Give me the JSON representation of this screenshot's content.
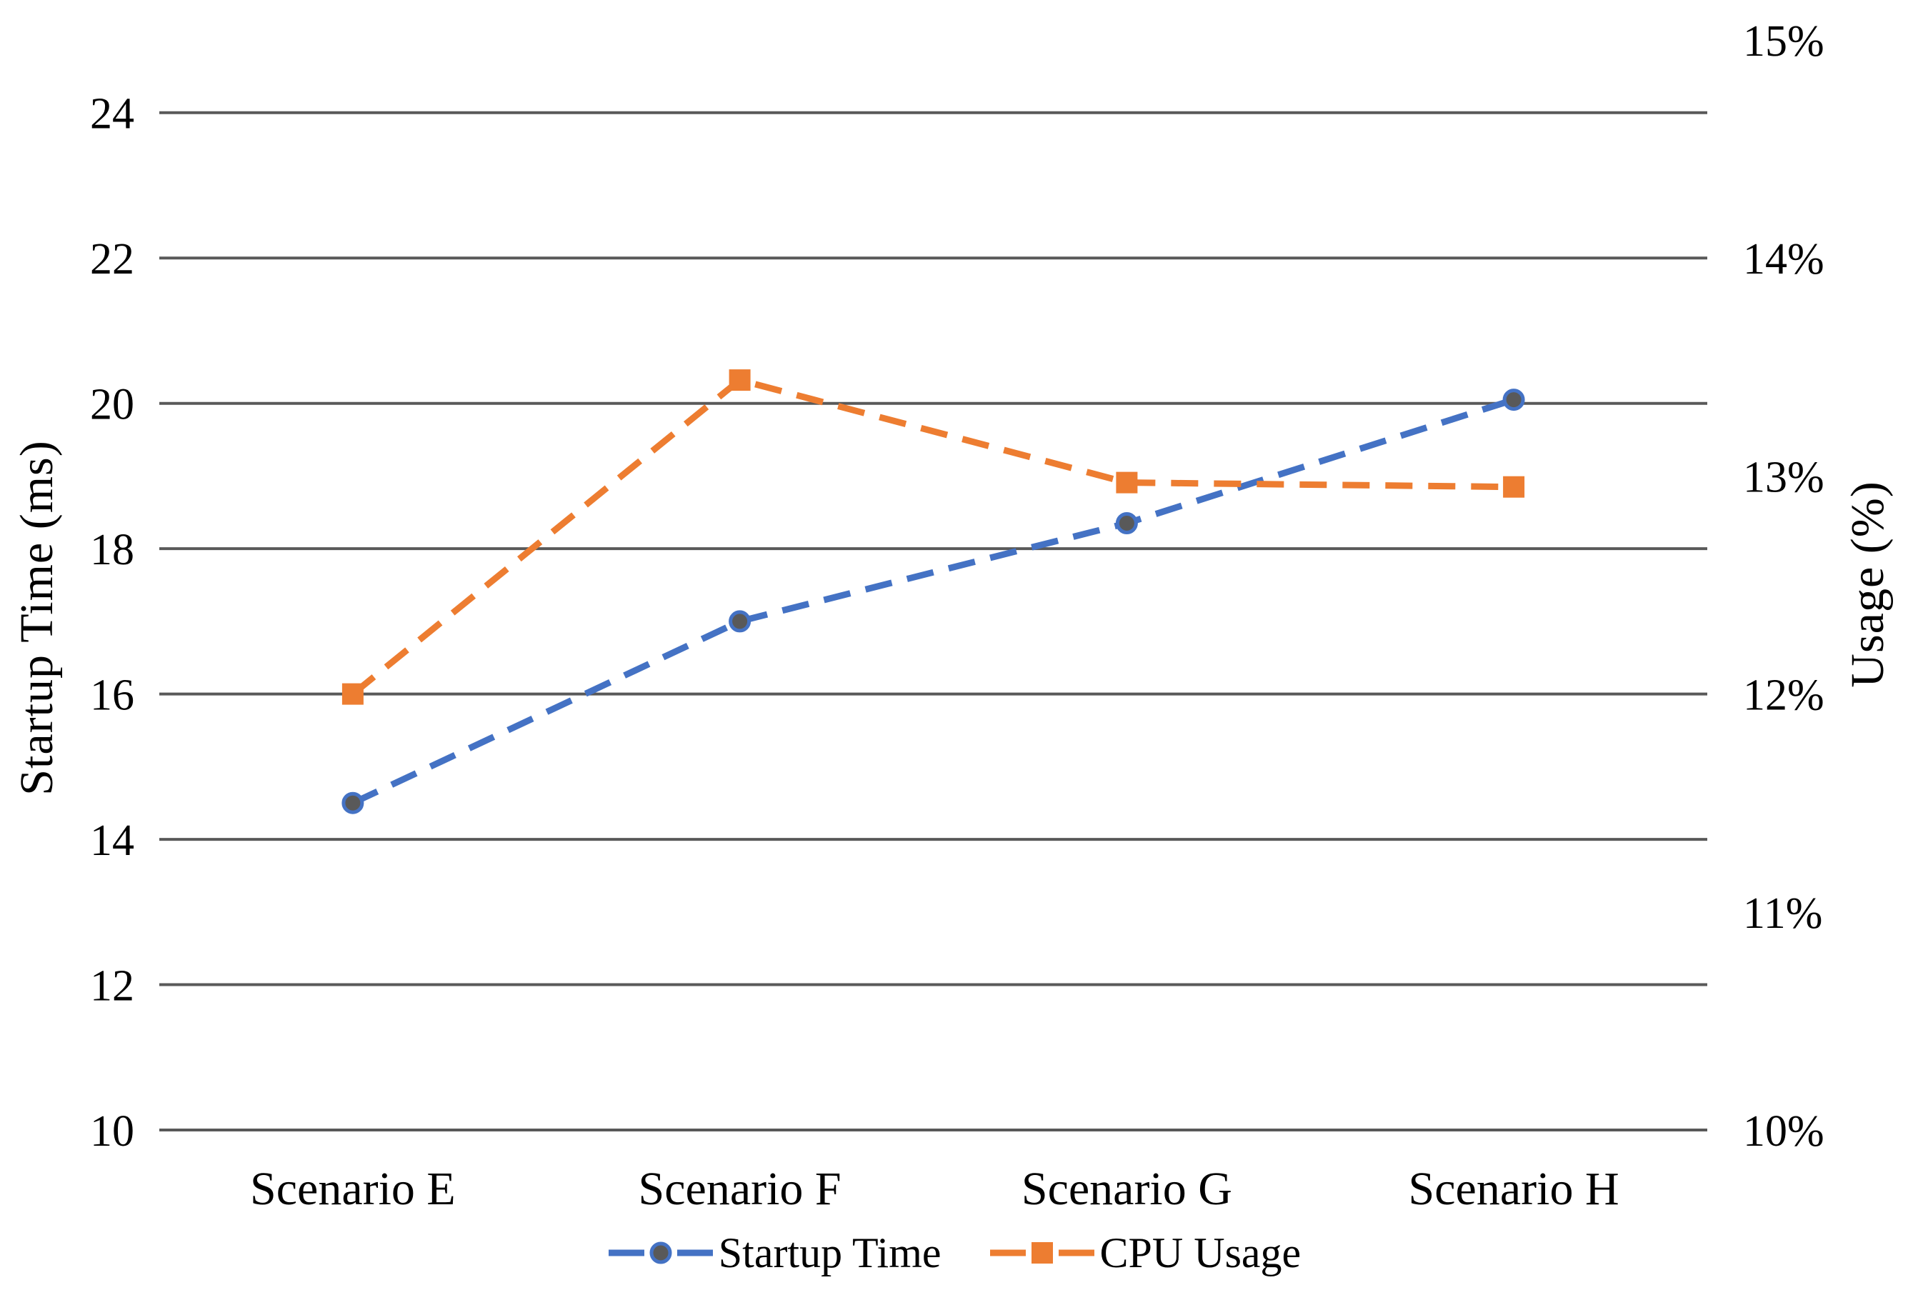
{
  "chart_data": {
    "type": "line",
    "title": "",
    "categories": [
      "Scenario E",
      "Scenario F",
      "Scenario G",
      "Scenario H"
    ],
    "series": [
      {
        "name": "Startup Time",
        "axis": "left",
        "unit": "ms",
        "values": [
          14.5,
          17.0,
          18.35,
          20.05
        ],
        "color": "#4472C4",
        "line_style": "dashed",
        "marker": "circle",
        "marker_fill": "#595959"
      },
      {
        "name": "CPU Usage",
        "axis": "right",
        "unit": "%",
        "values": [
          12.0,
          13.44,
          12.97,
          12.95
        ],
        "color": "#ED7D31",
        "line_style": "dashed",
        "marker": "square",
        "marker_fill": "#ED7D31"
      }
    ],
    "left_axis": {
      "title": "Startup Time (ms)",
      "min": 10,
      "max": 25,
      "tick_values": [
        24,
        22,
        20,
        18,
        16,
        14,
        12,
        10
      ],
      "tick_labels": [
        "24",
        "22",
        "20",
        "18",
        "16",
        "14",
        "12",
        "10"
      ]
    },
    "right_axis": {
      "title": "Usage (%)",
      "min": 10,
      "max": 15,
      "tick_values": [
        15,
        14,
        13,
        12,
        11,
        10
      ],
      "tick_labels": [
        "15%",
        "14%",
        "13%",
        "12%",
        "11%",
        "10%"
      ]
    },
    "grid": {
      "horizontal": true,
      "vertical": false,
      "color": "#595959"
    },
    "legend": {
      "position": "bottom",
      "entries": [
        "Startup Time",
        "CPU Usage"
      ]
    },
    "background": "#FFFFFF",
    "text_color": "#000000"
  }
}
